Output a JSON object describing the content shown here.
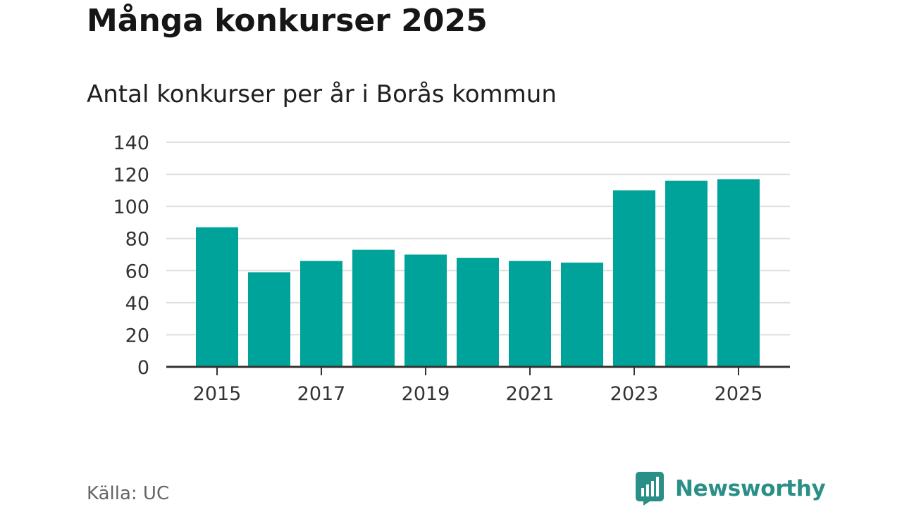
{
  "header": {
    "title": "Många konkurser 2025",
    "subtitle": "Antal konkurser per år i Borås kommun"
  },
  "footer": {
    "source": "Källa: UC",
    "brand": "Newsworthy",
    "brand_icon": "bar-chart-speech-bubble-icon"
  },
  "colors": {
    "bar": "#00a39a",
    "grid": "#dedede",
    "axis": "#333333",
    "brand": "#2a8f86"
  },
  "chart_data": {
    "type": "bar",
    "title": "Många konkurser 2025",
    "subtitle": "Antal konkurser per år i Borås kommun",
    "categories": [
      "2015",
      "2016",
      "2017",
      "2018",
      "2019",
      "2020",
      "2021",
      "2022",
      "2023",
      "2024",
      "2025"
    ],
    "values": [
      87,
      59,
      66,
      73,
      70,
      68,
      66,
      65,
      110,
      116,
      117
    ],
    "x_tick_labels": [
      "2015",
      "2017",
      "2019",
      "2021",
      "2023",
      "2025"
    ],
    "y_ticks": [
      0,
      20,
      40,
      60,
      80,
      100,
      120,
      140
    ],
    "ylim": [
      0,
      140
    ],
    "xlabel": "",
    "ylabel": "",
    "grid": true,
    "legend": false
  }
}
